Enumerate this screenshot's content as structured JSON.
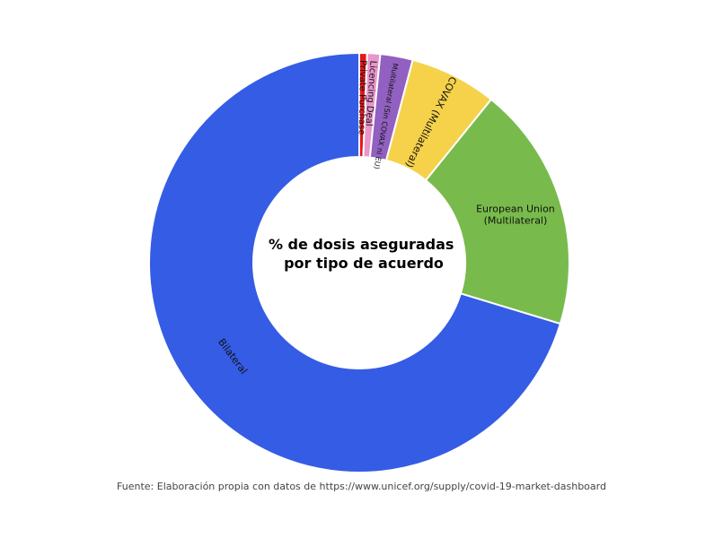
{
  "chart_data": {
    "type": "pie",
    "title_lines": [
      "% de dosis aseguradas",
      "por tipo de acuerdo"
    ],
    "source": "Fuente: Elaboración propia con datos de https://www.unicef.org/supply/covid-19-market-dashboard",
    "slices": [
      {
        "label": "Private Purchase",
        "value": 0.6,
        "color": "#e8141c"
      },
      {
        "label": "Licencing Deal",
        "value": 1.0,
        "color": "#e896cc"
      },
      {
        "label": "Multilateral (Sin COVAX ni EU)",
        "value": 2.5,
        "color": "#9160c0"
      },
      {
        "label": "COVAX (Multilateral)",
        "value": 6.7,
        "color": "#f5d24a"
      },
      {
        "label": "European Union (Multilateral)",
        "value": 18.9,
        "color": "#78bb4c"
      },
      {
        "label": "Bilateral",
        "value": 70.3,
        "color": "#355ce4"
      }
    ]
  }
}
